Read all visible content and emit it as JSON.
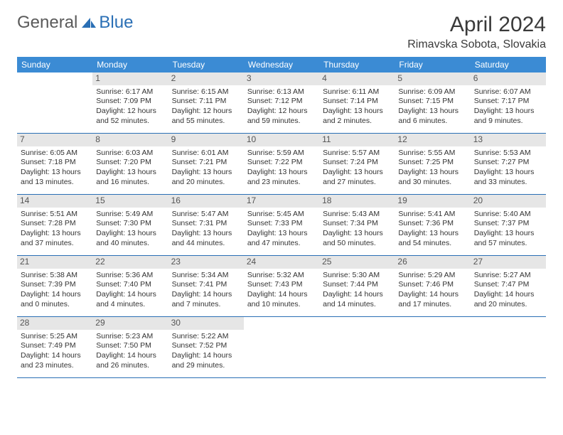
{
  "brand": {
    "part1": "General",
    "part2": "Blue"
  },
  "title": {
    "month": "April 2024",
    "location": "Rimavska Sobota, Slovakia"
  },
  "colors": {
    "header_bg": "#3b8bd4",
    "header_text": "#ffffff",
    "divider": "#2a6fb5",
    "daynum_bg": "#e6e6e6",
    "text": "#333333",
    "brand_gray": "#5a5a5a",
    "brand_blue": "#2a6fb5"
  },
  "weekdays": [
    "Sunday",
    "Monday",
    "Tuesday",
    "Wednesday",
    "Thursday",
    "Friday",
    "Saturday"
  ],
  "weeks": [
    [
      {
        "n": "",
        "info": ""
      },
      {
        "n": "1",
        "info": "Sunrise: 6:17 AM\nSunset: 7:09 PM\nDaylight: 12 hours and 52 minutes."
      },
      {
        "n": "2",
        "info": "Sunrise: 6:15 AM\nSunset: 7:11 PM\nDaylight: 12 hours and 55 minutes."
      },
      {
        "n": "3",
        "info": "Sunrise: 6:13 AM\nSunset: 7:12 PM\nDaylight: 12 hours and 59 minutes."
      },
      {
        "n": "4",
        "info": "Sunrise: 6:11 AM\nSunset: 7:14 PM\nDaylight: 13 hours and 2 minutes."
      },
      {
        "n": "5",
        "info": "Sunrise: 6:09 AM\nSunset: 7:15 PM\nDaylight: 13 hours and 6 minutes."
      },
      {
        "n": "6",
        "info": "Sunrise: 6:07 AM\nSunset: 7:17 PM\nDaylight: 13 hours and 9 minutes."
      }
    ],
    [
      {
        "n": "7",
        "info": "Sunrise: 6:05 AM\nSunset: 7:18 PM\nDaylight: 13 hours and 13 minutes."
      },
      {
        "n": "8",
        "info": "Sunrise: 6:03 AM\nSunset: 7:20 PM\nDaylight: 13 hours and 16 minutes."
      },
      {
        "n": "9",
        "info": "Sunrise: 6:01 AM\nSunset: 7:21 PM\nDaylight: 13 hours and 20 minutes."
      },
      {
        "n": "10",
        "info": "Sunrise: 5:59 AM\nSunset: 7:22 PM\nDaylight: 13 hours and 23 minutes."
      },
      {
        "n": "11",
        "info": "Sunrise: 5:57 AM\nSunset: 7:24 PM\nDaylight: 13 hours and 27 minutes."
      },
      {
        "n": "12",
        "info": "Sunrise: 5:55 AM\nSunset: 7:25 PM\nDaylight: 13 hours and 30 minutes."
      },
      {
        "n": "13",
        "info": "Sunrise: 5:53 AM\nSunset: 7:27 PM\nDaylight: 13 hours and 33 minutes."
      }
    ],
    [
      {
        "n": "14",
        "info": "Sunrise: 5:51 AM\nSunset: 7:28 PM\nDaylight: 13 hours and 37 minutes."
      },
      {
        "n": "15",
        "info": "Sunrise: 5:49 AM\nSunset: 7:30 PM\nDaylight: 13 hours and 40 minutes."
      },
      {
        "n": "16",
        "info": "Sunrise: 5:47 AM\nSunset: 7:31 PM\nDaylight: 13 hours and 44 minutes."
      },
      {
        "n": "17",
        "info": "Sunrise: 5:45 AM\nSunset: 7:33 PM\nDaylight: 13 hours and 47 minutes."
      },
      {
        "n": "18",
        "info": "Sunrise: 5:43 AM\nSunset: 7:34 PM\nDaylight: 13 hours and 50 minutes."
      },
      {
        "n": "19",
        "info": "Sunrise: 5:41 AM\nSunset: 7:36 PM\nDaylight: 13 hours and 54 minutes."
      },
      {
        "n": "20",
        "info": "Sunrise: 5:40 AM\nSunset: 7:37 PM\nDaylight: 13 hours and 57 minutes."
      }
    ],
    [
      {
        "n": "21",
        "info": "Sunrise: 5:38 AM\nSunset: 7:39 PM\nDaylight: 14 hours and 0 minutes."
      },
      {
        "n": "22",
        "info": "Sunrise: 5:36 AM\nSunset: 7:40 PM\nDaylight: 14 hours and 4 minutes."
      },
      {
        "n": "23",
        "info": "Sunrise: 5:34 AM\nSunset: 7:41 PM\nDaylight: 14 hours and 7 minutes."
      },
      {
        "n": "24",
        "info": "Sunrise: 5:32 AM\nSunset: 7:43 PM\nDaylight: 14 hours and 10 minutes."
      },
      {
        "n": "25",
        "info": "Sunrise: 5:30 AM\nSunset: 7:44 PM\nDaylight: 14 hours and 14 minutes."
      },
      {
        "n": "26",
        "info": "Sunrise: 5:29 AM\nSunset: 7:46 PM\nDaylight: 14 hours and 17 minutes."
      },
      {
        "n": "27",
        "info": "Sunrise: 5:27 AM\nSunset: 7:47 PM\nDaylight: 14 hours and 20 minutes."
      }
    ],
    [
      {
        "n": "28",
        "info": "Sunrise: 5:25 AM\nSunset: 7:49 PM\nDaylight: 14 hours and 23 minutes."
      },
      {
        "n": "29",
        "info": "Sunrise: 5:23 AM\nSunset: 7:50 PM\nDaylight: 14 hours and 26 minutes."
      },
      {
        "n": "30",
        "info": "Sunrise: 5:22 AM\nSunset: 7:52 PM\nDaylight: 14 hours and 29 minutes."
      },
      {
        "n": "",
        "info": ""
      },
      {
        "n": "",
        "info": ""
      },
      {
        "n": "",
        "info": ""
      },
      {
        "n": "",
        "info": ""
      }
    ]
  ]
}
